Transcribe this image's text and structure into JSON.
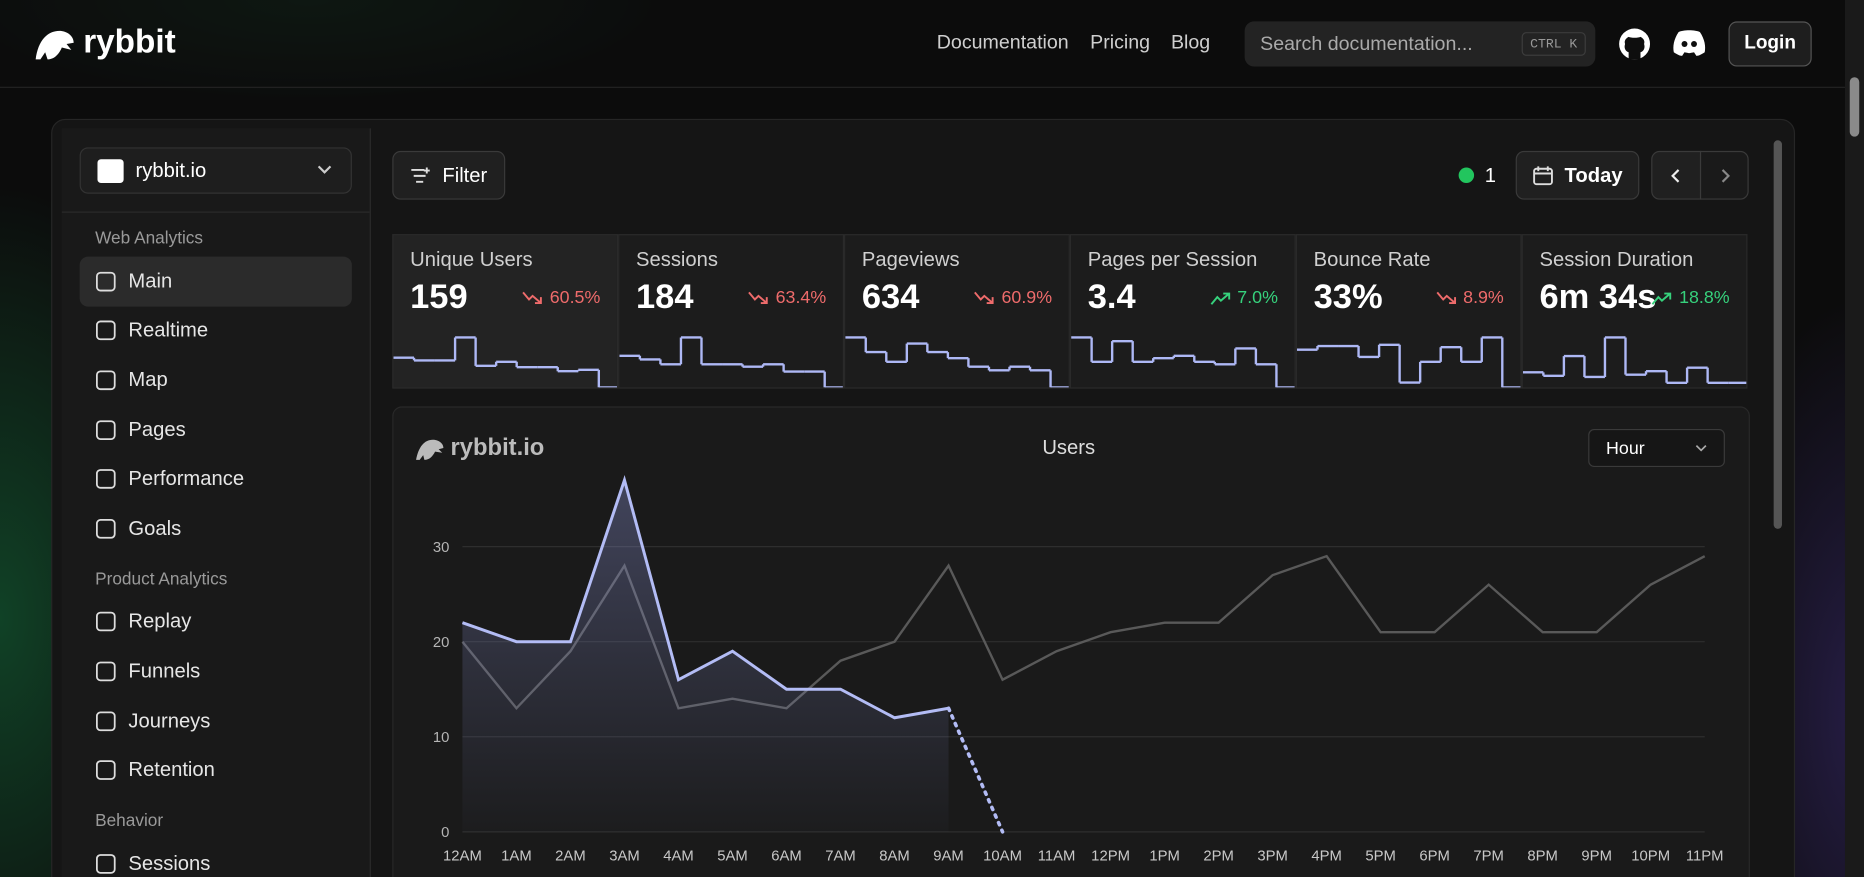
{
  "nav": {
    "brand": "rybbit",
    "links": [
      "Documentation",
      "Pricing",
      "Blog"
    ],
    "search": "Search documentation...",
    "shortcut": "CTRL K",
    "login": "Login"
  },
  "sidebar": {
    "site": "rybbit.io",
    "sections": [
      {
        "title": "Web Analytics",
        "items": [
          "Main",
          "Realtime",
          "Map",
          "Pages",
          "Performance",
          "Goals"
        ]
      },
      {
        "title": "Product Analytics",
        "items": [
          "Replay",
          "Funnels",
          "Journeys",
          "Retention"
        ]
      },
      {
        "title": "Behavior",
        "items": [
          "Sessions"
        ]
      }
    ]
  },
  "toolbar": {
    "filter": "Filter",
    "online": 1,
    "date": "Today"
  },
  "metrics": [
    {
      "label": "Unique Users",
      "value": "159",
      "change": "60.5%",
      "trend": "down",
      "spark": [
        22,
        20,
        20,
        37,
        16,
        19,
        15,
        15,
        12,
        13,
        0
      ]
    },
    {
      "label": "Sessions",
      "value": "184",
      "change": "63.4%",
      "trend": "down",
      "spark": [
        26,
        23,
        19,
        41,
        19,
        19,
        17,
        19,
        13,
        13,
        0
      ]
    },
    {
      "label": "Pageviews",
      "value": "634",
      "change": "60.9%",
      "trend": "down",
      "spark": [
        41,
        29,
        21,
        36,
        29,
        24,
        17,
        14,
        17,
        14,
        0
      ]
    },
    {
      "label": "Pages per Session",
      "value": "3.4",
      "change": "7.0%",
      "trend": "up",
      "spark": [
        41,
        21,
        38,
        21,
        24,
        26,
        21,
        19,
        32,
        19,
        0
      ]
    },
    {
      "label": "Bounce Rate",
      "value": "33%",
      "change": "8.9%",
      "trend": "down",
      "spark": [
        31,
        34,
        34,
        25,
        35,
        4,
        21,
        33,
        21,
        41,
        0
      ]
    },
    {
      "label": "Session Duration",
      "value": "6m 34s",
      "change": "18.8%",
      "trend": "up",
      "spark": [
        13,
        10,
        27,
        9,
        43,
        11,
        14,
        4,
        17,
        4,
        4
      ]
    }
  ],
  "chart_data": {
    "type": "line",
    "brand": "rybbit.io",
    "title": "Users",
    "granularity": "Hour",
    "categories": [
      "12AM",
      "1AM",
      "2AM",
      "3AM",
      "4AM",
      "5AM",
      "6AM",
      "7AM",
      "8AM",
      "9AM",
      "10AM",
      "11AM",
      "12PM",
      "1PM",
      "2PM",
      "3PM",
      "4PM",
      "5PM",
      "6PM",
      "7PM",
      "8PM",
      "9PM",
      "10PM",
      "11PM"
    ],
    "series": [
      {
        "color": "#b3bcf5",
        "values": [
          22,
          20,
          20,
          37,
          16,
          19,
          15,
          15,
          12,
          13,
          0,
          null,
          null,
          null,
          null,
          null,
          null,
          null,
          null,
          null,
          null,
          null,
          null,
          null
        ]
      },
      {
        "color": "#595959",
        "values": [
          20,
          13,
          19,
          28,
          13,
          14,
          13,
          18,
          20,
          28,
          16,
          19,
          21,
          22,
          22,
          27,
          29,
          21,
          21,
          26,
          21,
          21,
          26,
          29
        ]
      }
    ],
    "ylim": [
      0,
      37
    ],
    "yticks": [
      0,
      10,
      20,
      30
    ],
    "grid": true
  }
}
